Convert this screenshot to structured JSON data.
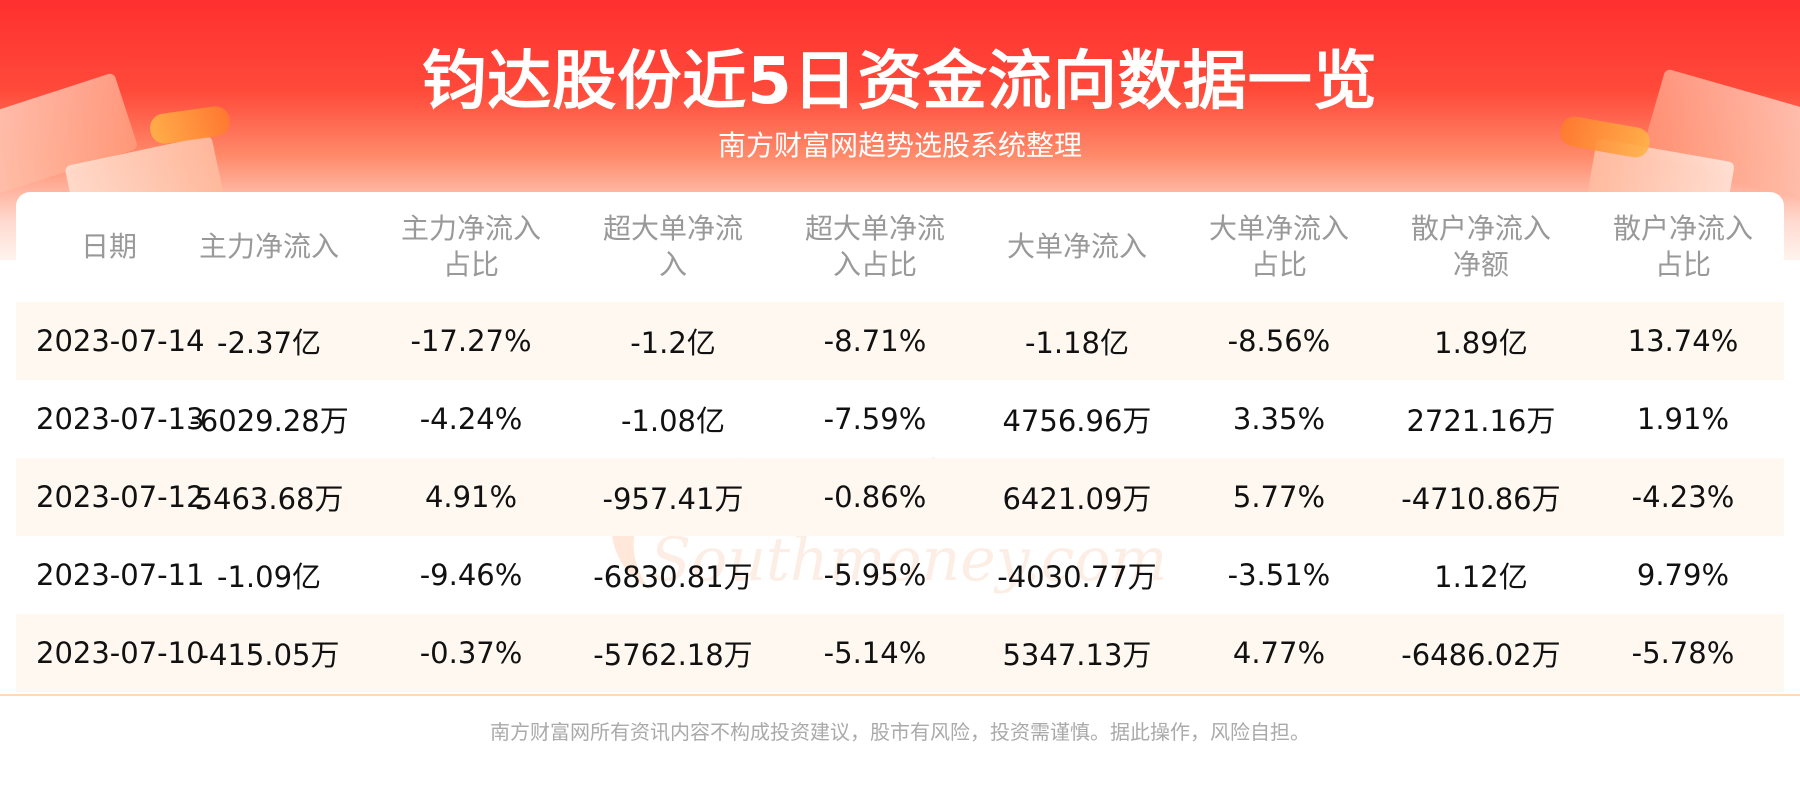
{
  "header": {
    "title": "钧达股份近5日资金流向数据一览",
    "subtitle": "南方财富网趋势选股系统整理"
  },
  "table": {
    "headers": [
      [
        "日期"
      ],
      [
        "主力净流入"
      ],
      [
        "主力净流入",
        "占比"
      ],
      [
        "超大单净流",
        "入"
      ],
      [
        "超大单净流",
        "入占比"
      ],
      [
        "大单净流入"
      ],
      [
        "大单净流入",
        "占比"
      ],
      [
        "散户净流入",
        "净额"
      ],
      [
        "散户净流入",
        "占比"
      ]
    ],
    "rows": [
      [
        "2023-07-14",
        "-2.37亿",
        "-17.27%",
        "-1.2亿",
        "-8.71%",
        "-1.18亿",
        "-8.56%",
        "1.89亿",
        "13.74%"
      ],
      [
        "2023-07-13",
        "-6029.28万",
        "-4.24%",
        "-1.08亿",
        "-7.59%",
        "4756.96万",
        "3.35%",
        "2721.16万",
        "1.91%"
      ],
      [
        "2023-07-12",
        "5463.68万",
        "4.91%",
        "-957.41万",
        "-0.86%",
        "6421.09万",
        "5.77%",
        "-4710.86万",
        "-4.23%"
      ],
      [
        "2023-07-11",
        "-1.09亿",
        "-9.46%",
        "-6830.81万",
        "-5.95%",
        "-4030.77万",
        "-3.51%",
        "1.12亿",
        "9.79%"
      ],
      [
        "2023-07-10",
        "-415.05万",
        "-0.37%",
        "-5762.18万",
        "-5.14%",
        "5347.13万",
        "4.77%",
        "-6486.02万",
        "-5.78%"
      ]
    ]
  },
  "watermark": {
    "cn": "南方财富网",
    "en": "Southmoney.com"
  },
  "footer": {
    "disclaimer": "南方财富网所有资讯内容不构成投资建议，股市有风险，投资需谨慎。据此操作，风险自担。"
  },
  "colors": {
    "banner_red": "#ff2f2f",
    "stripe": "#fff8f1",
    "header_text": "#999999"
  }
}
